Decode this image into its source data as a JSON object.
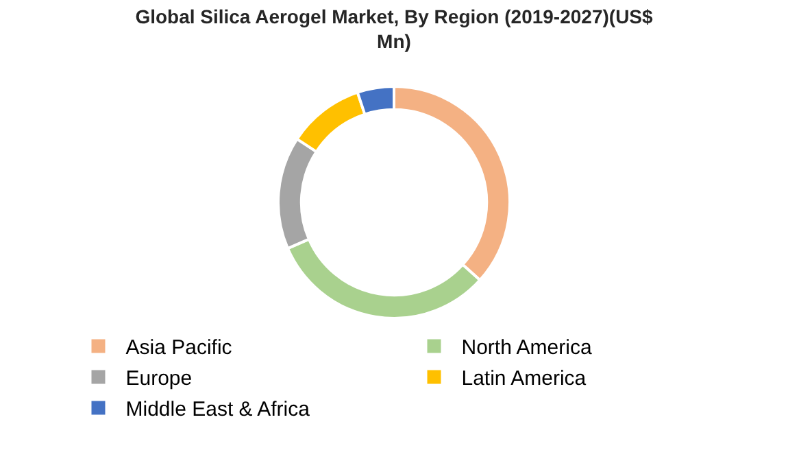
{
  "chart_data": {
    "type": "donut",
    "title": "Global Silica Aerogel Market, By Region (2019-2027)(US$ Mn)",
    "categories": [
      "Asia Pacific",
      "North America",
      "Europe",
      "Latin America",
      "Middle East & Africa"
    ],
    "values": [
      36.7,
      31.8,
      15.7,
      10.7,
      5.1
    ],
    "colors": [
      "#f4b183",
      "#a9d18e",
      "#a5a5a5",
      "#ffc000",
      "#4472c4"
    ],
    "legend": "bottom"
  }
}
